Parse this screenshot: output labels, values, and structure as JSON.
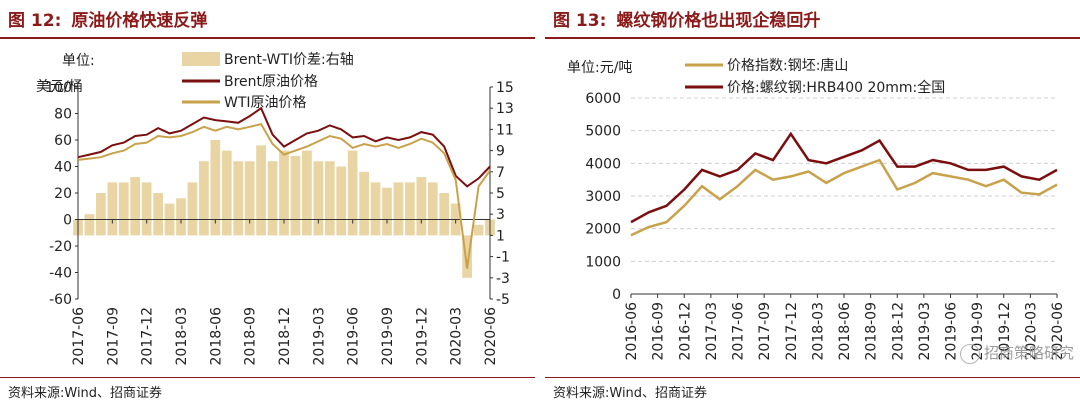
{
  "left": {
    "title_num": "图 12:",
    "title_text": "原油价格快速反弹",
    "source": "资料来源:Wind、招商证券",
    "unit_line1": "单位:",
    "unit_line2": "美元/桶",
    "legend": [
      "Brent-WTI价差:右轴",
      "Brent原油价格",
      "WTI原油价格"
    ]
  },
  "right": {
    "title_num": "图 13:",
    "title_text": "螺纹钢价格也出现企稳回升",
    "source": "资料来源:Wind、招商证券",
    "unit": "单位:元/吨",
    "legend": [
      "价格指数:钢坯:唐山",
      "价格:螺纹钢:HRB400 20mm:全国"
    ],
    "watermark": "招商策略研究"
  },
  "colors": {
    "brent": "#7b0e0e",
    "wti": "#c8a24b",
    "spread": "#e8d5a3",
    "title": "#8b1a1a"
  },
  "chart_data": [
    {
      "type": "line",
      "title": "原油价格快速反弹",
      "ylabel": "美元/桶",
      "ylim": [
        -60,
        100
      ],
      "y_ticks": [
        -60,
        -40,
        -20,
        0,
        20,
        40,
        60,
        80,
        100
      ],
      "y2lim": [
        -5,
        15
      ],
      "y2_ticks": [
        -5,
        -3,
        -1,
        1,
        3,
        5,
        7,
        9,
        11,
        13,
        15
      ],
      "x_ticks": [
        "2017-06",
        "2017-09",
        "2017-12",
        "2018-03",
        "2018-06",
        "2018-09",
        "2018-12",
        "2019-03",
        "2019-06",
        "2019-09",
        "2019-12",
        "2020-03",
        "2020-06"
      ],
      "grid": false,
      "legend_position": "top-center",
      "series": [
        {
          "name": "Brent-WTI价差:右轴",
          "type": "area",
          "axis": "right",
          "x": [
            "2017-06",
            "2017-07",
            "2017-08",
            "2017-09",
            "2017-10",
            "2017-11",
            "2017-12",
            "2018-01",
            "2018-02",
            "2018-03",
            "2018-04",
            "2018-05",
            "2018-06",
            "2018-07",
            "2018-08",
            "2018-09",
            "2018-10",
            "2018-11",
            "2018-12",
            "2019-01",
            "2019-02",
            "2019-03",
            "2019-04",
            "2019-05",
            "2019-06",
            "2019-07",
            "2019-08",
            "2019-09",
            "2019-10",
            "2019-11",
            "2019-12",
            "2020-01",
            "2020-02",
            "2020-03",
            "2020-04",
            "2020-05",
            "2020-06"
          ],
          "values": [
            2.5,
            3,
            5,
            6,
            6,
            6.5,
            6,
            5,
            4,
            4.5,
            6,
            8,
            10,
            9,
            8,
            8,
            9.5,
            8,
            9,
            8.5,
            9,
            8,
            8,
            7.5,
            9,
            7,
            6,
            5.5,
            6,
            6,
            6.5,
            6,
            5,
            4,
            -3,
            2,
            2.5
          ]
        },
        {
          "name": "Brent原油价格",
          "axis": "left",
          "x": [
            "2017-06",
            "2017-07",
            "2017-08",
            "2017-09",
            "2017-10",
            "2017-11",
            "2017-12",
            "2018-01",
            "2018-02",
            "2018-03",
            "2018-04",
            "2018-05",
            "2018-06",
            "2018-07",
            "2018-08",
            "2018-09",
            "2018-10",
            "2018-11",
            "2018-12",
            "2019-01",
            "2019-02",
            "2019-03",
            "2019-04",
            "2019-05",
            "2019-06",
            "2019-07",
            "2019-08",
            "2019-09",
            "2019-10",
            "2019-11",
            "2019-12",
            "2020-01",
            "2020-02",
            "2020-03",
            "2020-04",
            "2020-05",
            "2020-06"
          ],
          "values": [
            47,
            49,
            51,
            56,
            58,
            63,
            64,
            69,
            65,
            67,
            72,
            77,
            75,
            74,
            73,
            78,
            84,
            64,
            55,
            60,
            65,
            67,
            71,
            68,
            62,
            63,
            59,
            62,
            60,
            62,
            66,
            64,
            55,
            33,
            25,
            31,
            40
          ]
        },
        {
          "name": "WTI原油价格",
          "axis": "left",
          "x": [
            "2017-06",
            "2017-07",
            "2017-08",
            "2017-09",
            "2017-10",
            "2017-11",
            "2017-12",
            "2018-01",
            "2018-02",
            "2018-03",
            "2018-04",
            "2018-05",
            "2018-06",
            "2018-07",
            "2018-08",
            "2018-09",
            "2018-10",
            "2018-11",
            "2018-12",
            "2019-01",
            "2019-02",
            "2019-03",
            "2019-04",
            "2019-05",
            "2019-06",
            "2019-07",
            "2019-08",
            "2019-09",
            "2019-10",
            "2019-11",
            "2019-12",
            "2020-01",
            "2020-02",
            "2020-03",
            "2020-04",
            "2020-05",
            "2020-06"
          ],
          "values": [
            45,
            46,
            47,
            50,
            52,
            57,
            58,
            63,
            62,
            63,
            66,
            70,
            67,
            70,
            68,
            70,
            72,
            57,
            49,
            52,
            55,
            59,
            63,
            61,
            54,
            57,
            55,
            57,
            54,
            57,
            61,
            58,
            50,
            30,
            -37,
            25,
            37
          ]
        }
      ]
    },
    {
      "type": "line",
      "title": "螺纹钢价格也出现企稳回升",
      "ylabel": "元/吨",
      "ylim": [
        0,
        6000
      ],
      "y_ticks": [
        0,
        1000,
        2000,
        3000,
        4000,
        5000,
        6000
      ],
      "x_ticks": [
        "2016-06",
        "2016-09",
        "2016-12",
        "2017-03",
        "2017-06",
        "2017-09",
        "2017-12",
        "2018-03",
        "2018-06",
        "2018-09",
        "2018-12",
        "2019-03",
        "2019-06",
        "2019-09",
        "2019-12",
        "2020-03",
        "2020-06"
      ],
      "grid": true,
      "legend_position": "top-center",
      "series": [
        {
          "name": "价格指数:钢坯:唐山",
          "x": [
            "2016-06",
            "2016-08",
            "2016-10",
            "2016-12",
            "2017-02",
            "2017-04",
            "2017-06",
            "2017-08",
            "2017-10",
            "2017-12",
            "2018-02",
            "2018-04",
            "2018-06",
            "2018-08",
            "2018-10",
            "2018-12",
            "2019-02",
            "2019-04",
            "2019-06",
            "2019-08",
            "2019-10",
            "2019-12",
            "2020-02",
            "2020-04",
            "2020-06"
          ],
          "values": [
            1800,
            2050,
            2200,
            2700,
            3300,
            2900,
            3300,
            3800,
            3500,
            3600,
            3750,
            3400,
            3700,
            3900,
            4100,
            3200,
            3400,
            3700,
            3600,
            3500,
            3300,
            3500,
            3100,
            3050,
            3350
          ]
        },
        {
          "name": "价格:螺纹钢:HRB400 20mm:全国",
          "x": [
            "2016-06",
            "2016-08",
            "2016-10",
            "2016-12",
            "2017-02",
            "2017-04",
            "2017-06",
            "2017-08",
            "2017-10",
            "2017-12",
            "2018-02",
            "2018-04",
            "2018-06",
            "2018-08",
            "2018-10",
            "2018-12",
            "2019-02",
            "2019-04",
            "2019-06",
            "2019-08",
            "2019-10",
            "2019-12",
            "2020-02",
            "2020-04",
            "2020-06"
          ],
          "values": [
            2200,
            2500,
            2700,
            3200,
            3800,
            3600,
            3800,
            4300,
            4100,
            4900,
            4100,
            4000,
            4200,
            4400,
            4700,
            3900,
            3900,
            4100,
            4000,
            3800,
            3800,
            3900,
            3600,
            3500,
            3800
          ]
        }
      ]
    }
  ]
}
